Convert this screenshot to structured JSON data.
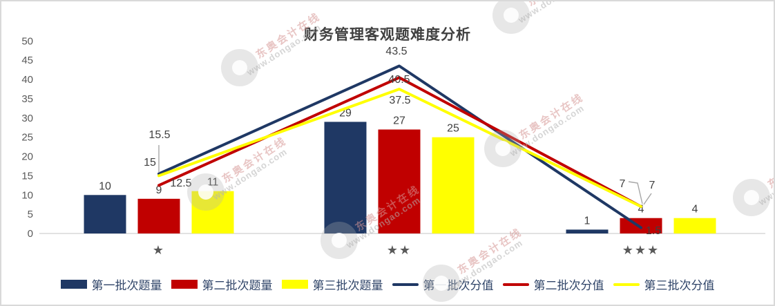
{
  "title": "财务管理客观题难度分析",
  "watermark": {
    "brand": "东奥会计在线",
    "url": "www.dongao.com"
  },
  "colors": {
    "navy": "#1F3864",
    "red": "#C00000",
    "yellow": "#FFFF00",
    "title_text": "#404040",
    "label_text": "#404040",
    "tick_text": "#595959",
    "legend_text": "#2F4468",
    "axis_line": "#D9D9D9",
    "leader_line": "#A6A6A6",
    "chart_border": "#D9D9D9"
  },
  "chart_data": {
    "type": "combo-bar-line",
    "title": "财务管理客观题难度分析",
    "categories": [
      "★",
      "★★",
      "★★★"
    ],
    "bar_series": [
      {
        "name": "第一批次题量",
        "color": "#1F3864",
        "values": [
          10,
          29,
          1
        ]
      },
      {
        "name": "第二批次题量",
        "color": "#C00000",
        "values": [
          9,
          27,
          4
        ]
      },
      {
        "name": "第三批次题量",
        "color": "#FFFF00",
        "values": [
          11,
          25,
          4
        ]
      }
    ],
    "line_series": [
      {
        "name": "第一批次分值",
        "color": "#1F3864",
        "values": [
          15.5,
          43.5,
          1.5
        ]
      },
      {
        "name": "第二批次分值",
        "color": "#C00000",
        "values": [
          12.5,
          40.5,
          7
        ]
      },
      {
        "name": "第三批次分值",
        "color": "#FFFF00",
        "values": [
          15,
          37.5,
          7
        ]
      }
    ],
    "ylim": [
      0,
      50
    ],
    "ytick_step": 5,
    "grid": false,
    "legend_position": "bottom",
    "data_labels": true
  }
}
